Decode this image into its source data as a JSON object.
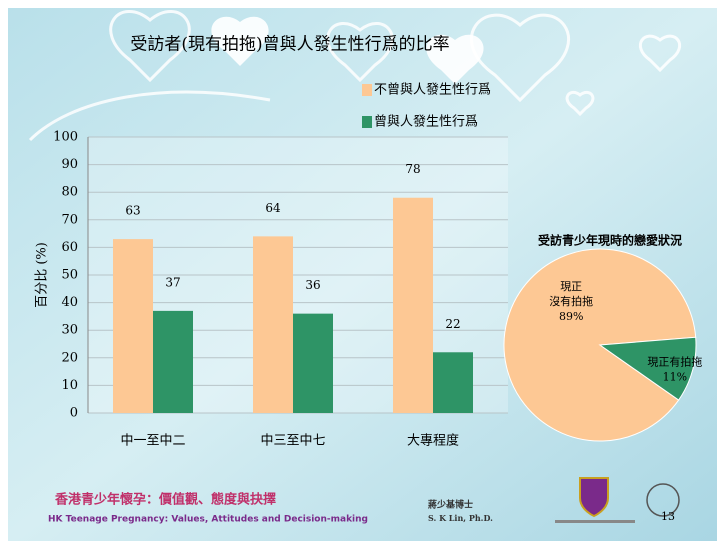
{
  "chart_data": [
    {
      "type": "bar",
      "title": "受訪者(現有拍拖)曾與人發生性行爲的比率",
      "y_label": "百分比 (%)",
      "categories": [
        "中一至中二",
        "中三至中七",
        "大專程度"
      ],
      "series": [
        {
          "name": "不曾與人發生性行爲",
          "color": "#fdc894",
          "values": [
            63,
            64,
            78
          ]
        },
        {
          "name": "曾與人發生性行爲",
          "color": "#2e9466",
          "values": [
            37,
            36,
            22
          ]
        }
      ],
      "ylim": [
        0,
        100
      ],
      "yticks": [
        0,
        10,
        20,
        30,
        40,
        50,
        60,
        70,
        80,
        90,
        100
      ],
      "grid": true
    },
    {
      "type": "pie",
      "title": "受訪青少年現時的戀愛狀況",
      "categories": [
        "現正沒有拍拖",
        "現正有拍拖"
      ],
      "values": [
        89,
        11
      ],
      "value_labels": [
        "89%",
        "11%"
      ],
      "colors": [
        "#fdc894",
        "#2e9466"
      ]
    }
  ],
  "footer": {
    "title_zh": "香港青少年懷孕：價值觀、態度與抉擇",
    "title_en": "HK Teenage Pregnancy: Values, Attitudes and Decision-making",
    "author_zh": "蔣少基博士",
    "author_en": "S. K Lin, Ph.D.",
    "page": "13"
  }
}
